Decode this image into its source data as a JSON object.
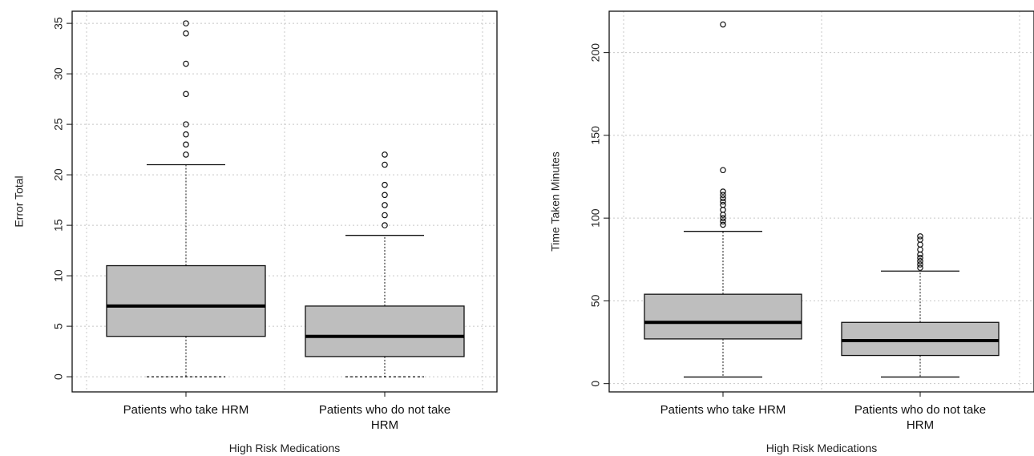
{
  "chart_data": [
    {
      "type": "box",
      "xlabel": "High Risk Medications",
      "ylabel": "Error Total",
      "ylim": [
        -1.5,
        36.2
      ],
      "yticks": [
        0,
        5,
        10,
        15,
        20,
        25,
        30,
        35
      ],
      "grid": true,
      "categories": [
        "Patients who take HRM",
        "Patients who do not take HRM"
      ],
      "boxes": [
        {
          "q1": 4,
          "median": 7,
          "q3": 11,
          "whisker_low": 0,
          "whisker_high": 21,
          "outliers": [
            22,
            23,
            24,
            25,
            28,
            31,
            34,
            35
          ]
        },
        {
          "q1": 2,
          "median": 4,
          "q3": 7,
          "whisker_low": 0,
          "whisker_high": 14,
          "outliers": [
            15,
            16,
            17,
            18,
            19,
            21,
            22
          ]
        }
      ]
    },
    {
      "type": "box",
      "xlabel": "High Risk Medications",
      "ylabel": "Time Taken Minutes",
      "ylim": [
        -5,
        225
      ],
      "yticks": [
        0,
        50,
        100,
        150,
        200
      ],
      "grid": true,
      "categories": [
        "Patients who take HRM",
        "Patients who do not take HRM"
      ],
      "boxes": [
        {
          "q1": 27,
          "median": 37,
          "q3": 54,
          "whisker_low": 4,
          "whisker_high": 92,
          "outliers": [
            96,
            98,
            100,
            102,
            105,
            108,
            110,
            112,
            114,
            116,
            129,
            217
          ]
        },
        {
          "q1": 17,
          "median": 26,
          "q3": 37,
          "whisker_low": 4,
          "whisker_high": 68,
          "outliers": [
            70,
            72,
            74,
            76,
            78,
            81,
            84,
            87,
            89
          ]
        }
      ]
    }
  ]
}
